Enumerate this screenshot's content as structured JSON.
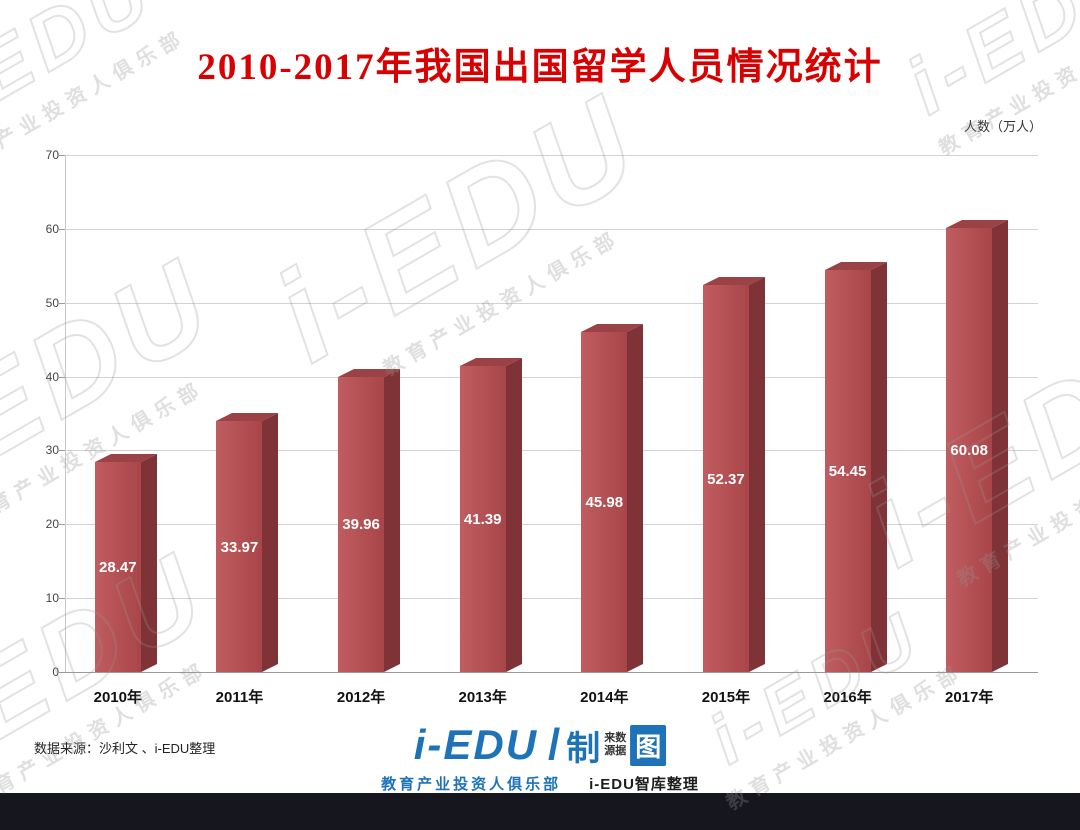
{
  "page": {
    "title": "2010-2017年我国出国留学人员情况统计",
    "unit_label": "人数（万人）",
    "source_text": "数据来源：沙利文 、i-EDU整理"
  },
  "watermark": {
    "big": "i-EDU",
    "small": "教育产业投资人俱乐部"
  },
  "footer_logo": {
    "brand": "i-EDU",
    "slash": "/",
    "zhi": "制",
    "small_line1": "来数",
    "small_line2": "源据",
    "tu": "图",
    "sub_left": "教育产业投资人俱乐部",
    "sub_right": "i-EDU智库整理"
  },
  "colors": {
    "title_red": "#d80000",
    "bar_front": "#a84549",
    "bar_front_light": "#c05d60",
    "bar_side": "#7f3337",
    "bar_top": "#9a4246",
    "brand_blue": "#1e73b8",
    "footer_strip": "#16161f"
  },
  "chart_data": {
    "type": "bar",
    "title": "2010-2017年我国出国留学人员情况统计",
    "categories": [
      "2010年",
      "2011年",
      "2012年",
      "2013年",
      "2014年",
      "2015年",
      "2016年",
      "2017年"
    ],
    "values": [
      28.47,
      33.97,
      39.96,
      41.39,
      45.98,
      52.37,
      54.45,
      60.08
    ],
    "xlabel": "",
    "ylabel": "人数（万人）",
    "ylim": [
      0,
      70
    ],
    "yticks": [
      0,
      10,
      20,
      30,
      40,
      50,
      60,
      70
    ],
    "grid": true,
    "legend": "none",
    "value_labels": true,
    "bar_style": "3d"
  }
}
